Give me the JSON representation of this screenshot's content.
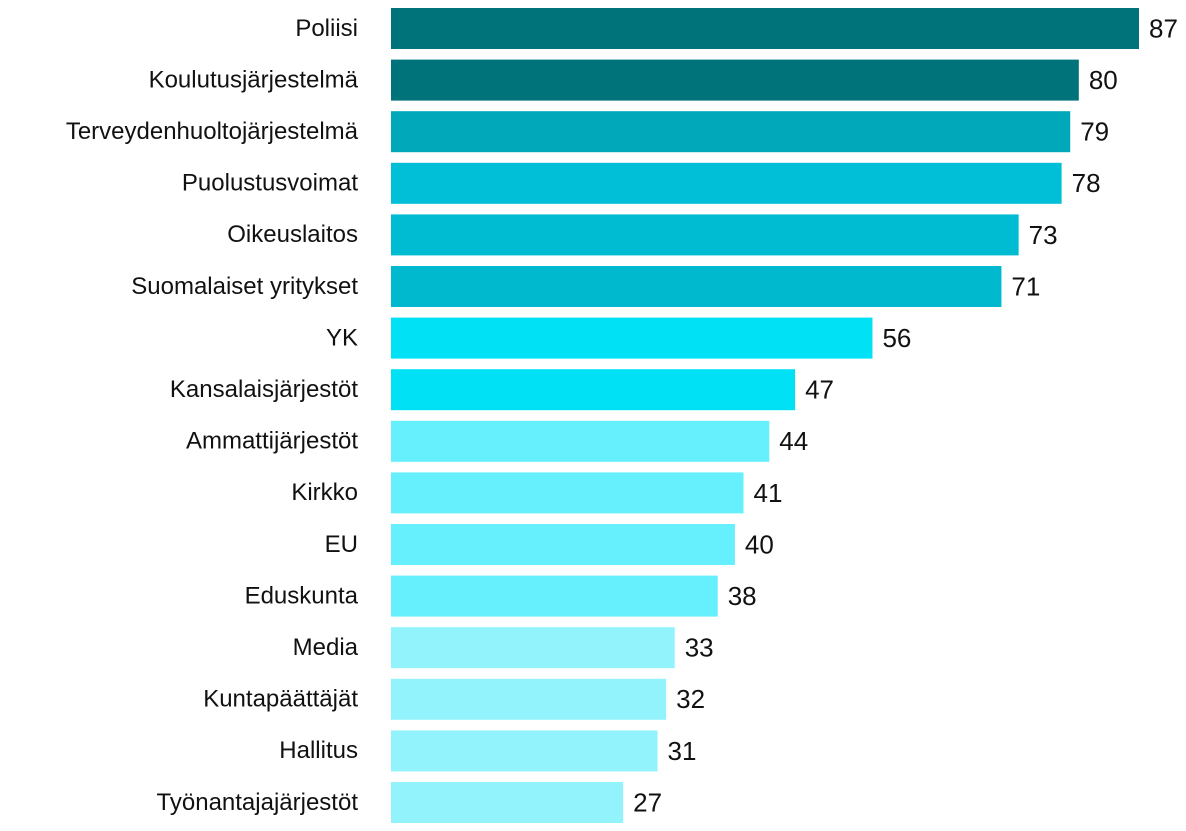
{
  "chart_data": {
    "type": "barh",
    "categories": [
      "Poliisi",
      "Koulutusjärjestelmä",
      "Terveydenhuoltojärjestelmä",
      "Puolustusvoimat",
      "Oikeuslaitos",
      "Suomalaiset yritykset",
      "YK",
      "Kansalaisjärjestöt",
      "Ammattijärjestöt",
      "Kirkko",
      "EU",
      "Eduskunta",
      "Media",
      "Kuntapäättäjät",
      "Hallitus",
      "Työnantajajärjestöt"
    ],
    "values": [
      87,
      80,
      79,
      78,
      73,
      71,
      56,
      47,
      44,
      41,
      40,
      38,
      33,
      32,
      31,
      27
    ],
    "colors": [
      "#00727a",
      "#00727a",
      "#00a8b9",
      "#00bfd6",
      "#00bcd3",
      "#00b9cf",
      "#00e1f6",
      "#00e1f6",
      "#66effd",
      "#66effd",
      "#66effd",
      "#66effd",
      "#92f3fd",
      "#92f3fd",
      "#92f3fd",
      "#92f3fd"
    ]
  }
}
